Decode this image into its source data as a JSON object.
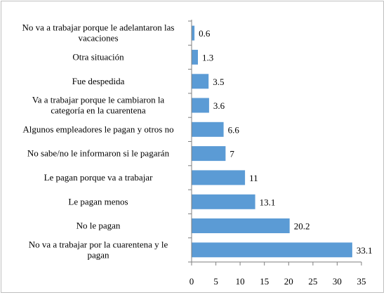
{
  "chart_data": {
    "type": "bar",
    "orientation": "horizontal",
    "title": "",
    "xlabel": "",
    "ylabel": "",
    "xlim": [
      0,
      35
    ],
    "xticks": [
      0,
      5,
      10,
      15,
      20,
      25,
      30,
      35
    ],
    "grid": false,
    "legend": "none",
    "bar_color": "#5b9bd5",
    "categories": [
      [
        "No va a trabajar porque le adelantaron las",
        "vacaciones"
      ],
      [
        "Otra situación"
      ],
      [
        "Fue despedida"
      ],
      [
        "Va a trabajar porque le cambiaron la",
        "categoría en la cuarentena"
      ],
      [
        "Algunos empleadores le pagan y otros no"
      ],
      [
        "No sabe/no le informaron si le pagarán"
      ],
      [
        "Le pagan porque va a trabajar"
      ],
      [
        "Le pagan menos"
      ],
      [
        "No le pagan"
      ],
      [
        "No va a trabajar por la cuarentena y le",
        "pagan"
      ]
    ],
    "values": [
      0.6,
      1.3,
      3.5,
      3.6,
      6.6,
      7,
      11,
      13.1,
      20.2,
      33.1
    ]
  }
}
